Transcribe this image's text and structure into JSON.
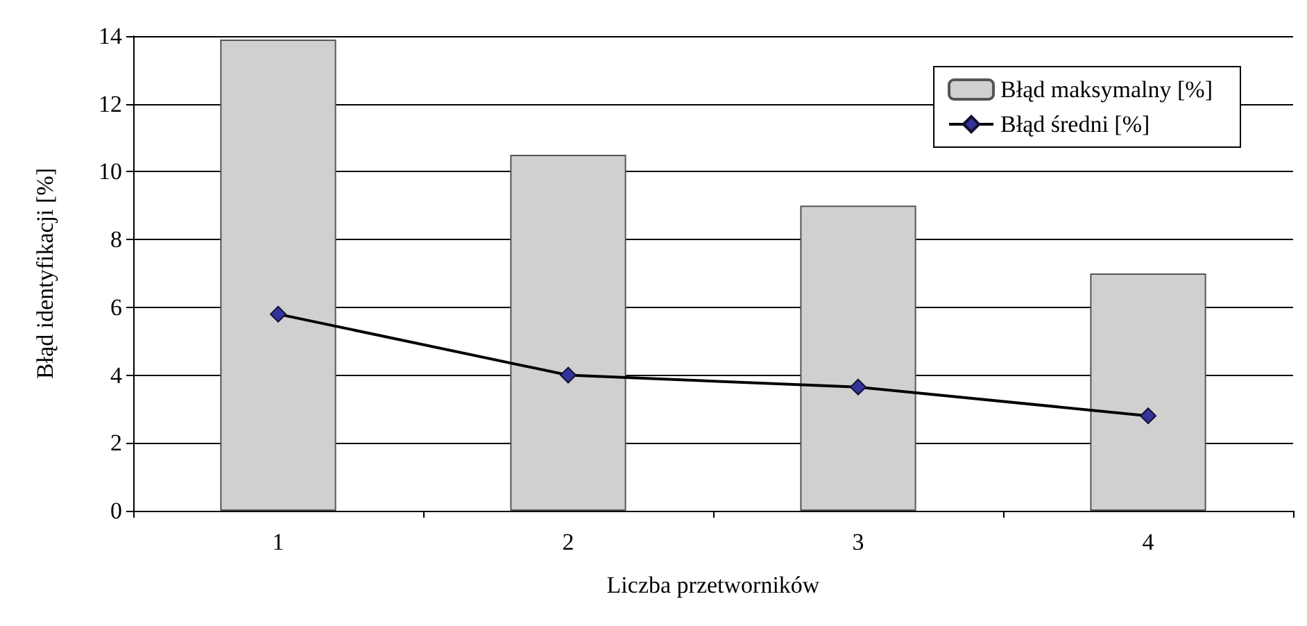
{
  "chart_data": {
    "type": "bar",
    "xlabel": "Liczba przetworników",
    "ylabel": "Błąd identyfikacji [%]",
    "categories": [
      "1",
      "2",
      "3",
      "4"
    ],
    "series": [
      {
        "name": "Błąd maksymalny [%]",
        "color": "#d0d0d0",
        "values": [
          13.9,
          10.5,
          9.0,
          7.0
        ]
      },
      {
        "name": "Błąd średni [%]",
        "type": "line",
        "color": "#333399",
        "values": [
          5.8,
          4.0,
          3.65,
          2.8
        ],
        "marker": "diamond",
        "line_style": "solid"
      }
    ],
    "ylim": [
      0,
      14
    ],
    "yticks": [
      0,
      2,
      4,
      6,
      8,
      10,
      12,
      14
    ],
    "grid": "y",
    "legend": "top right"
  }
}
